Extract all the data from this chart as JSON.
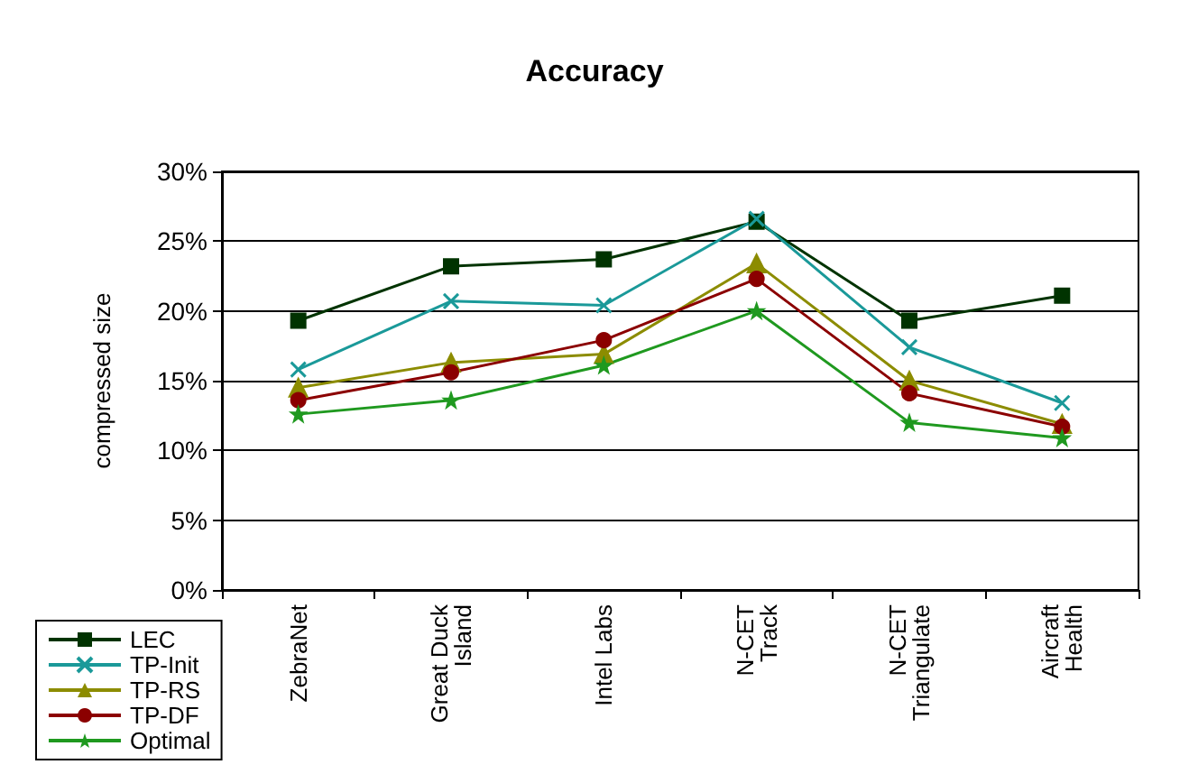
{
  "chart_data": {
    "type": "line",
    "title": "Accuracy",
    "ylabel": "compressed size",
    "categories": [
      "ZebraNet",
      "Great Duck\nIsland",
      "Intel Labs",
      "N-CET\nTrack",
      "N-CET\nTriangulate",
      "Aircraft\nHealth"
    ],
    "series": [
      {
        "name": "LEC",
        "color": "#003300",
        "marker": "square",
        "values": [
          19.3,
          23.2,
          23.7,
          26.4,
          19.3,
          21.1
        ]
      },
      {
        "name": "TP-Init",
        "color": "#1a9999",
        "marker": "cross",
        "values": [
          15.8,
          20.7,
          20.4,
          26.6,
          17.4,
          13.4
        ]
      },
      {
        "name": "TP-RS",
        "color": "#8c8c00",
        "marker": "triangle",
        "values": [
          14.5,
          16.3,
          16.9,
          23.4,
          15.0,
          11.9
        ]
      },
      {
        "name": "TP-DF",
        "color": "#8b0000",
        "marker": "circle",
        "values": [
          13.6,
          15.6,
          17.9,
          22.3,
          14.1,
          11.7
        ]
      },
      {
        "name": "Optimal",
        "color": "#1f991f",
        "marker": "star",
        "values": [
          12.6,
          13.6,
          16.1,
          20.0,
          12.0,
          10.9
        ]
      }
    ],
    "ylim": [
      0,
      30
    ],
    "yticks": [
      {
        "value": 0,
        "label": "0%"
      },
      {
        "value": 5,
        "label": "5%"
      },
      {
        "value": 10,
        "label": "10%"
      },
      {
        "value": 15,
        "label": "15%"
      },
      {
        "value": 20,
        "label": "20%"
      },
      {
        "value": 25,
        "label": "25%"
      },
      {
        "value": 30,
        "label": "30%"
      }
    ],
    "grid": "y",
    "legend": "bottom left"
  }
}
